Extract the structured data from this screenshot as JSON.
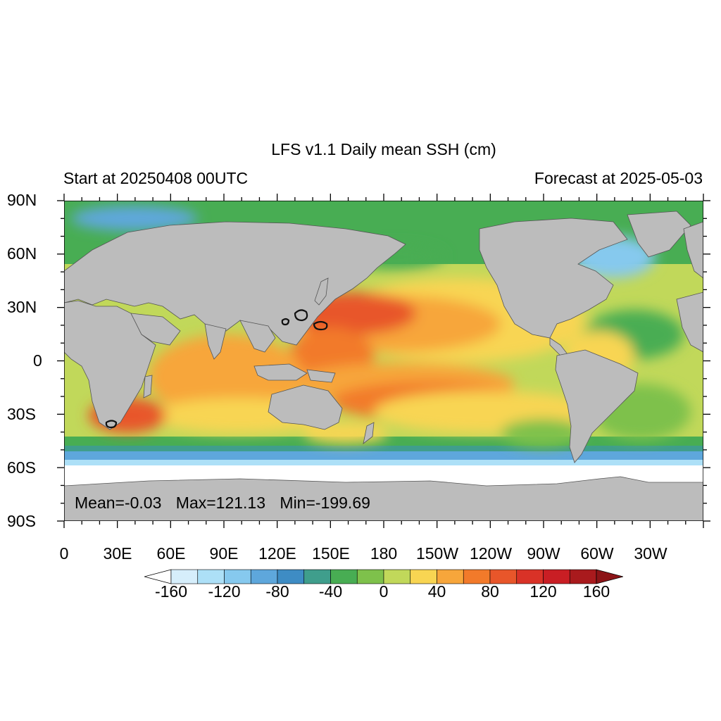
{
  "title": "LFS v1.1 Daily mean SSH (cm)",
  "subtitle_left": "Start at 20250408 00UTC",
  "subtitle_right": "Forecast at 2025-05-03",
  "lat_labels": [
    "90N",
    "60N",
    "30N",
    "0",
    "30S",
    "60S",
    "90S"
  ],
  "lon_labels": [
    "0",
    "30E",
    "60E",
    "90E",
    "120E",
    "150E",
    "180",
    "150W",
    "120W",
    "90W",
    "60W",
    "30W"
  ],
  "stats": {
    "mean": "Mean=-0.03",
    "max": "Max=121.13",
    "min": "Min=-199.69"
  },
  "colorbar": {
    "labels": [
      "-160",
      "-120",
      "-80",
      "-40",
      "0",
      "40",
      "80",
      "120",
      "160"
    ],
    "colors": [
      "#ffffff",
      "#d6eefb",
      "#ade0f7",
      "#86c9ee",
      "#5ea7dc",
      "#3e8cc4",
      "#3f9e8c",
      "#48ad53",
      "#7ec14b",
      "#c1d85a",
      "#f8d552",
      "#f7a63b",
      "#f27a2a",
      "#e8562a",
      "#d93227",
      "#c91e24",
      "#a91a1d",
      "#8c1417"
    ]
  },
  "map": {
    "land_color": "#bcbcbc",
    "ice_color": "#ffffff"
  }
}
